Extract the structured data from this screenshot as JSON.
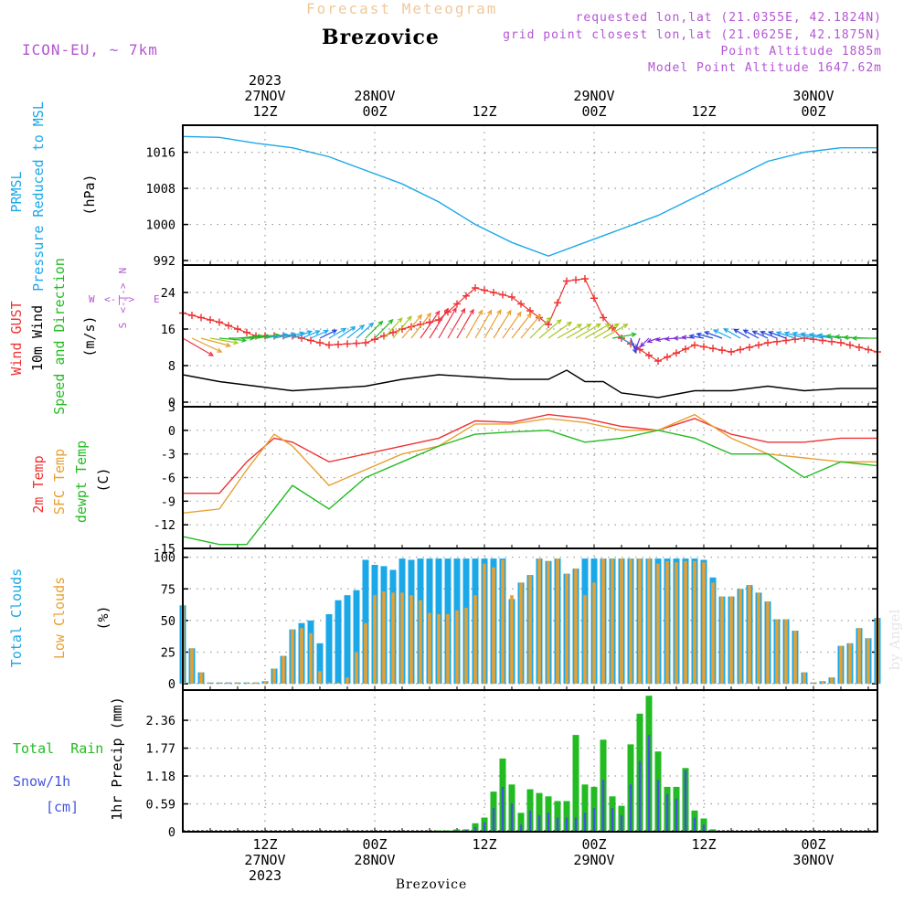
{
  "header": {
    "subtitle": "Forecast Meteogram",
    "title": "Brezovice",
    "model": "ICON-EU, ~ 7km",
    "requested": "requested lon,lat (21.0355E, 42.1824N)",
    "grid_point": "grid point closest lon,lat (21.0625E, 42.1875N)",
    "point_altitude": "Point Altitude 1885m",
    "model_altitude": "Model Point Altitude 1647.62m"
  },
  "footer": {
    "location": "Brezovice",
    "credit": "by Angel"
  },
  "time_axis": {
    "top_labels": [
      [
        "2023",
        "27NOV",
        "12Z"
      ],
      [
        "28NOV",
        "00Z"
      ],
      [
        "12Z"
      ],
      [
        "29NOV",
        "00Z"
      ],
      [
        "12Z"
      ],
      [
        "30NOV",
        "00Z"
      ]
    ],
    "bottom_labels": [
      [
        "12Z",
        "27NOV",
        "2023"
      ],
      [
        "00Z",
        "28NOV"
      ],
      [
        "12Z"
      ],
      [
        "00Z",
        "29NOV"
      ],
      [
        "12Z"
      ],
      [
        "00Z",
        "30NOV"
      ]
    ],
    "major_ticks_hours_from_start": [
      9,
      21,
      33,
      45,
      57,
      69
    ]
  },
  "wind_compass": {
    "north": "N",
    "south": "S",
    "west": "W",
    "east": "E"
  },
  "panels": {
    "pressure": {
      "labels": [
        {
          "text": "PRMSL",
          "color": "#1aa8e8"
        },
        {
          "text": "Pressure Reduced to MSL",
          "color": "#1aa8e8"
        },
        {
          "text": "(hPa)",
          "color": "#000000"
        }
      ],
      "ticks": [
        "1016",
        "1008",
        "1000",
        "992"
      ]
    },
    "wind": {
      "labels": [
        {
          "text": "Wind GUST",
          "color": "#ee3333"
        },
        {
          "text": "10m Wind",
          "color": "#000000"
        },
        {
          "text": "Speed and Direction",
          "color": "#22bb22"
        },
        {
          "text": "(m/s)",
          "color": "#000000"
        }
      ],
      "ticks": [
        "24",
        "16",
        "8",
        "0"
      ]
    },
    "temperature": {
      "labels": [
        {
          "text": "2m Temp",
          "color": "#ee3333"
        },
        {
          "text": "SFC Temp",
          "color": "#e8a030"
        },
        {
          "text": "dewpt Temp",
          "color": "#22bb22"
        },
        {
          "text": "(C)",
          "color": "#000000"
        }
      ],
      "ticks": [
        "3",
        "0",
        "-3",
        "-6",
        "-9",
        "-12",
        "-15"
      ]
    },
    "clouds": {
      "labels": [
        {
          "text": "Total Clouds",
          "color": "#1aa8e8"
        },
        {
          "text": "Low Clouds",
          "color": "#e8a030"
        },
        {
          "text": "(%)",
          "color": "#000000"
        }
      ],
      "ticks": [
        "100",
        "75",
        "50",
        "25",
        "0"
      ]
    },
    "precip": {
      "labels": [
        {
          "text": "Total  Rain",
          "color": "#22bb22"
        },
        {
          "text": "Snow/1h",
          "color": "#4455dd"
        },
        {
          "text": "[cm]",
          "color": "#4455dd"
        },
        {
          "text": "1hr Precip (mm)",
          "color": "#000000"
        }
      ],
      "ticks": [
        "2.36",
        "1.77",
        "1.18",
        "0.59",
        "0"
      ]
    }
  },
  "chart_data": [
    {
      "type": "line",
      "panel": "pressure",
      "x_hours": [
        0,
        4,
        8,
        12,
        16,
        20,
        24,
        28,
        32,
        36,
        40,
        44,
        48,
        52,
        56,
        60,
        64,
        68,
        72,
        76
      ],
      "series": [
        {
          "name": "PRMSL",
          "color": "#1aa8e8",
          "values": [
            1019.5,
            1019.3,
            1018,
            1017,
            1015,
            1012,
            1009,
            1005,
            1000,
            996,
            993,
            996,
            999,
            1002,
            1006,
            1010,
            1014,
            1016,
            1017,
            1017
          ]
        }
      ],
      "ylim": [
        991,
        1022
      ]
    },
    {
      "type": "line",
      "panel": "wind",
      "x_hours": [
        0,
        4,
        8,
        12,
        16,
        20,
        24,
        28,
        32,
        36,
        40,
        42,
        44,
        46,
        48,
        52,
        56,
        60,
        64,
        68,
        72,
        76
      ],
      "series": [
        {
          "name": "Wind GUST",
          "color": "#ee3333",
          "values": [
            19.5,
            17.5,
            14.5,
            14.5,
            12.5,
            13,
            16,
            18,
            25,
            23,
            17,
            26.5,
            27,
            18.5,
            14,
            9,
            12.5,
            11,
            13,
            14,
            13,
            11
          ]
        },
        {
          "name": "10m Wind",
          "color": "#000000",
          "values": [
            6,
            4.5,
            3.5,
            2.5,
            3,
            3.5,
            5,
            6,
            5.5,
            5,
            5,
            7,
            4.5,
            4.5,
            2,
            1,
            2.5,
            2.5,
            3.5,
            2.5,
            3,
            3
          ]
        }
      ],
      "ylim": [
        -1,
        30
      ]
    },
    {
      "type": "line",
      "panel": "temperature",
      "x_hours": [
        0,
        4,
        7,
        10,
        12,
        16,
        20,
        24,
        28,
        32,
        36,
        40,
        44,
        48,
        52,
        56,
        60,
        64,
        68,
        72,
        76
      ],
      "series": [
        {
          "name": "2m Temp",
          "color": "#ee3333",
          "values": [
            -8,
            -8,
            -4,
            -1,
            -1.5,
            -4,
            -3,
            -2,
            -1,
            1.2,
            1,
            2,
            1.5,
            0.5,
            0,
            1.5,
            -0.5,
            -1.5,
            -1.5,
            -1,
            -1
          ]
        },
        {
          "name": "SFC Temp",
          "color": "#e8a030",
          "values": [
            -10.5,
            -10,
            -5,
            -0.5,
            -2,
            -7,
            -5,
            -3,
            -2,
            0.8,
            0.8,
            1.5,
            1,
            0,
            0,
            2,
            -1,
            -3,
            -3.5,
            -4,
            -4
          ]
        },
        {
          "name": "dewpt Temp",
          "color": "#22bb22",
          "values": [
            -13.5,
            -14.5,
            -14.5,
            -10,
            -7,
            -10,
            -6,
            -4,
            -2,
            -0.5,
            -0.2,
            0,
            -1.5,
            -1,
            0,
            -1,
            -3,
            -3,
            -6,
            -4,
            -4.5
          ]
        }
      ],
      "ylim": [
        -15,
        3
      ]
    },
    {
      "type": "bar",
      "panel": "clouds",
      "x_hours": [
        0,
        1,
        2,
        3,
        4,
        5,
        6,
        7,
        8,
        9,
        10,
        11,
        12,
        13,
        14,
        15,
        16,
        17,
        18,
        19,
        20,
        21,
        22,
        23,
        24,
        25,
        26,
        27,
        28,
        29,
        30,
        31,
        32,
        33,
        34,
        35,
        36,
        37,
        38,
        39,
        40,
        41,
        42,
        43,
        44,
        45,
        46,
        47,
        48,
        49,
        50,
        51,
        52,
        53,
        54,
        55,
        56,
        57,
        58,
        59,
        60,
        61,
        62,
        63,
        64,
        65,
        66,
        67,
        68,
        69,
        70,
        71,
        72,
        73,
        74,
        75,
        76
      ],
      "series": [
        {
          "name": "Total Clouds",
          "color": "#1aa8e8",
          "values": [
            62,
            28,
            9,
            1,
            1,
            1,
            1,
            1,
            1,
            2,
            12,
            22,
            43,
            48,
            50,
            32,
            55,
            66,
            70,
            74,
            98,
            94,
            93,
            90,
            99,
            98,
            99,
            99,
            99,
            99,
            99,
            99,
            99,
            99,
            99,
            99,
            67,
            80,
            86,
            99,
            97,
            99,
            87,
            91,
            99,
            99,
            99,
            99,
            99,
            99,
            99,
            99,
            99,
            99,
            99,
            99,
            99,
            98,
            84,
            69,
            69,
            75,
            78,
            72,
            65,
            51,
            51,
            42,
            9,
            1,
            2,
            5,
            30,
            32,
            44,
            36,
            52
          ]
        },
        {
          "name": "Low Clouds",
          "color": "#e8a030",
          "values": [
            62,
            28,
            9,
            1,
            1,
            1,
            1,
            1,
            1,
            2,
            12,
            22,
            43,
            44,
            40,
            10,
            1,
            1,
            5,
            25,
            48,
            70,
            73,
            72,
            72,
            70,
            66,
            56,
            55,
            55,
            58,
            60,
            70,
            95,
            92,
            98,
            70,
            80,
            86,
            99,
            97,
            99,
            87,
            91,
            70,
            80,
            99,
            99,
            99,
            99,
            99,
            99,
            95,
            97,
            96,
            97,
            97,
            96,
            80,
            69,
            69,
            75,
            78,
            72,
            65,
            51,
            51,
            42,
            9,
            1,
            2,
            5,
            30,
            32,
            44,
            36,
            52
          ]
        }
      ],
      "ylim": [
        -5,
        107
      ]
    },
    {
      "type": "bar",
      "panel": "precip",
      "x_hours": [
        28,
        29,
        30,
        31,
        32,
        33,
        34,
        35,
        36,
        37,
        38,
        39,
        40,
        41,
        42,
        43,
        44,
        45,
        46,
        47,
        48,
        49,
        50,
        51,
        52,
        53,
        54,
        55,
        56,
        57,
        58
      ],
      "series": [
        {
          "name": "Total Rain",
          "color": "#22bb22",
          "values": [
            0.03,
            0.03,
            0.05,
            0.05,
            0.18,
            0.3,
            0.85,
            1.55,
            1.0,
            0.4,
            0.9,
            0.82,
            0.75,
            0.65,
            0.65,
            2.05,
            1.0,
            0.95,
            1.95,
            0.75,
            0.55,
            1.85,
            2.5,
            2.88,
            1.7,
            0.95,
            0.95,
            1.35,
            0.45,
            0.28,
            0.05
          ]
        },
        {
          "name": "Snow/1h",
          "color": "#4455dd",
          "values": [
            0.02,
            0.02,
            0.03,
            0.04,
            0.1,
            0.2,
            0.5,
            0.95,
            0.6,
            0.15,
            0.45,
            0.35,
            0.4,
            0.3,
            0.3,
            0.3,
            0.4,
            0.5,
            1.1,
            0.5,
            0.35,
            1.0,
            1.5,
            2.05,
            1.1,
            0.8,
            0.7,
            1.3,
            0.3,
            0.15,
            0.03
          ]
        }
      ],
      "ylim": [
        0,
        3.0
      ]
    },
    {
      "type": "scatter",
      "panel": "wind-arrows",
      "x_hours": [
        0,
        1,
        2,
        3,
        4,
        5,
        6,
        7,
        8,
        9,
        10,
        11,
        12,
        13,
        14,
        15,
        16,
        17,
        18,
        19,
        20,
        21,
        22,
        23,
        24,
        25,
        26,
        27,
        28,
        29,
        30,
        31,
        32,
        33,
        34,
        35,
        36,
        37,
        38,
        39,
        40,
        41,
        42,
        43,
        44,
        45,
        46,
        47,
        48,
        49,
        50,
        51,
        52,
        53,
        54,
        55,
        56,
        57,
        58,
        59,
        60,
        61,
        62,
        63,
        64,
        65,
        66,
        67,
        68,
        69,
        70,
        71,
        72,
        73,
        74,
        75,
        76
      ],
      "series": [
        {
          "name": "10m Wind Speed",
          "values": [
            6,
            5.5,
            5,
            4.5,
            4.2,
            4,
            3.8,
            3.6,
            3.5,
            3.3,
            3.1,
            3.0,
            2.8,
            2.6,
            2.5,
            2.4,
            2.6,
            2.8,
            3,
            3.3,
            3.6,
            4,
            4.3,
            4.6,
            5,
            5.3,
            5.6,
            6,
            6,
            5.8,
            5.6,
            5.4,
            5.4,
            5.5,
            5.5,
            5.3,
            5.2,
            5,
            4.8,
            4.6,
            4.5,
            4.4,
            4.5,
            4.6,
            4.7,
            4.6,
            4.5,
            3.6,
            2.6,
            1.8,
            1.2,
            1,
            0.8,
            0.8,
            0.8,
            0.9,
            1.1,
            1.5,
            2,
            2.4,
            2.6,
            2.5,
            2.3,
            2.1,
            2,
            2.2,
            2.4,
            2.6,
            2.8,
            3,
            3.2,
            3.3,
            3.4,
            3.5,
            3.6,
            3.7,
            3.8
          ]
        },
        {
          "name": "10m Wind Direction",
          "values": [
            300,
            295,
            285,
            280,
            275,
            270,
            265,
            265,
            262,
            260,
            258,
            255,
            250,
            248,
            246,
            244,
            240,
            236,
            232,
            228,
            225,
            224,
            222,
            220,
            220,
            218,
            215,
            212,
            210,
            210,
            210,
            210,
            210,
            210,
            212,
            215,
            218,
            220,
            225,
            230,
            235,
            240,
            240,
            240,
            240,
            240,
            240,
            260,
            300,
            340,
            20,
            45,
            70,
            80,
            85,
            90,
            95,
            100,
            105,
            110,
            115,
            120,
            120,
            118,
            115,
            112,
            110,
            108,
            106,
            104,
            102,
            100,
            98,
            96,
            94,
            92,
            90
          ]
        }
      ]
    }
  ]
}
